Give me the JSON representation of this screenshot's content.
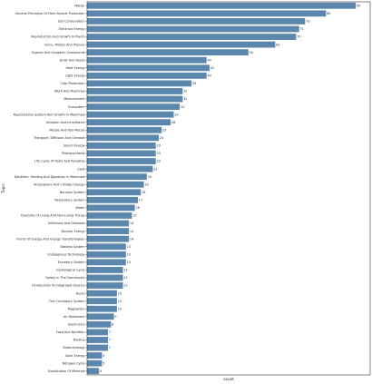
{
  "chart_data": {
    "type": "bar",
    "orientation": "horizontal",
    "xlabel": "count",
    "ylabel": "Topic",
    "bar_color": "#5b87ac",
    "grid": false,
    "xlim": [
      0,
      94.8
    ],
    "categories": [
      "Matter",
      "General Principles Of Farm Animal Production",
      "Soil Conservation",
      "Electrical Energy",
      "Reproduction And Growth In Plants",
      "Force, Motion And Presure",
      "Organic And Inorganic Compounds",
      "Acids And Bases",
      "Heat Energy",
      "Light Energy",
      "Crop Production",
      "Work And Machines",
      "Measurement",
      "Ecosystem",
      "Reproductive System And Growth In Mammals",
      "Variation And Inheritance",
      "Metals And Non-Metals",
      "Transport, Diffusion And Osmosis",
      "Sound Energy",
      "Photosynthesis",
      "Life Cycle Of Pests And Parasites",
      "Cells",
      "Dentition, Feeding And Digestion In Mammals",
      "Atmosphere And Climate Change",
      "Nervous System",
      "Respiratory System",
      "Water",
      "Diversity Of Living And Non-Living Things",
      "Infections And Diseases",
      "Nuclear Energy",
      "Forms Of Energy And Energy Transformation",
      "Skeletal System",
      "Endogenous Technology",
      "Excretory System",
      "Hydrological Cycle",
      "Safety In The Community",
      "Introduction To Integrated Science",
      "Rocks",
      "The Circulatory System",
      "Magnetism",
      "Air Movement",
      "Electronics",
      "Food And Nutrition",
      "Rusting",
      "Biotechnology",
      "Solar Energy",
      "Nitrogen Cycle",
      "Exploitation Of Minerals"
    ],
    "values": [
      90,
      80,
      73,
      71,
      70,
      63,
      54,
      40,
      41,
      40,
      35,
      32,
      32,
      31,
      29,
      28,
      25,
      24,
      23,
      23,
      23,
      22,
      20,
      19,
      18,
      17,
      16,
      15,
      14,
      14,
      14,
      13,
      13,
      13,
      12,
      12,
      12,
      10,
      10,
      10,
      9,
      8,
      7,
      7,
      7,
      5,
      5,
      4
    ]
  }
}
